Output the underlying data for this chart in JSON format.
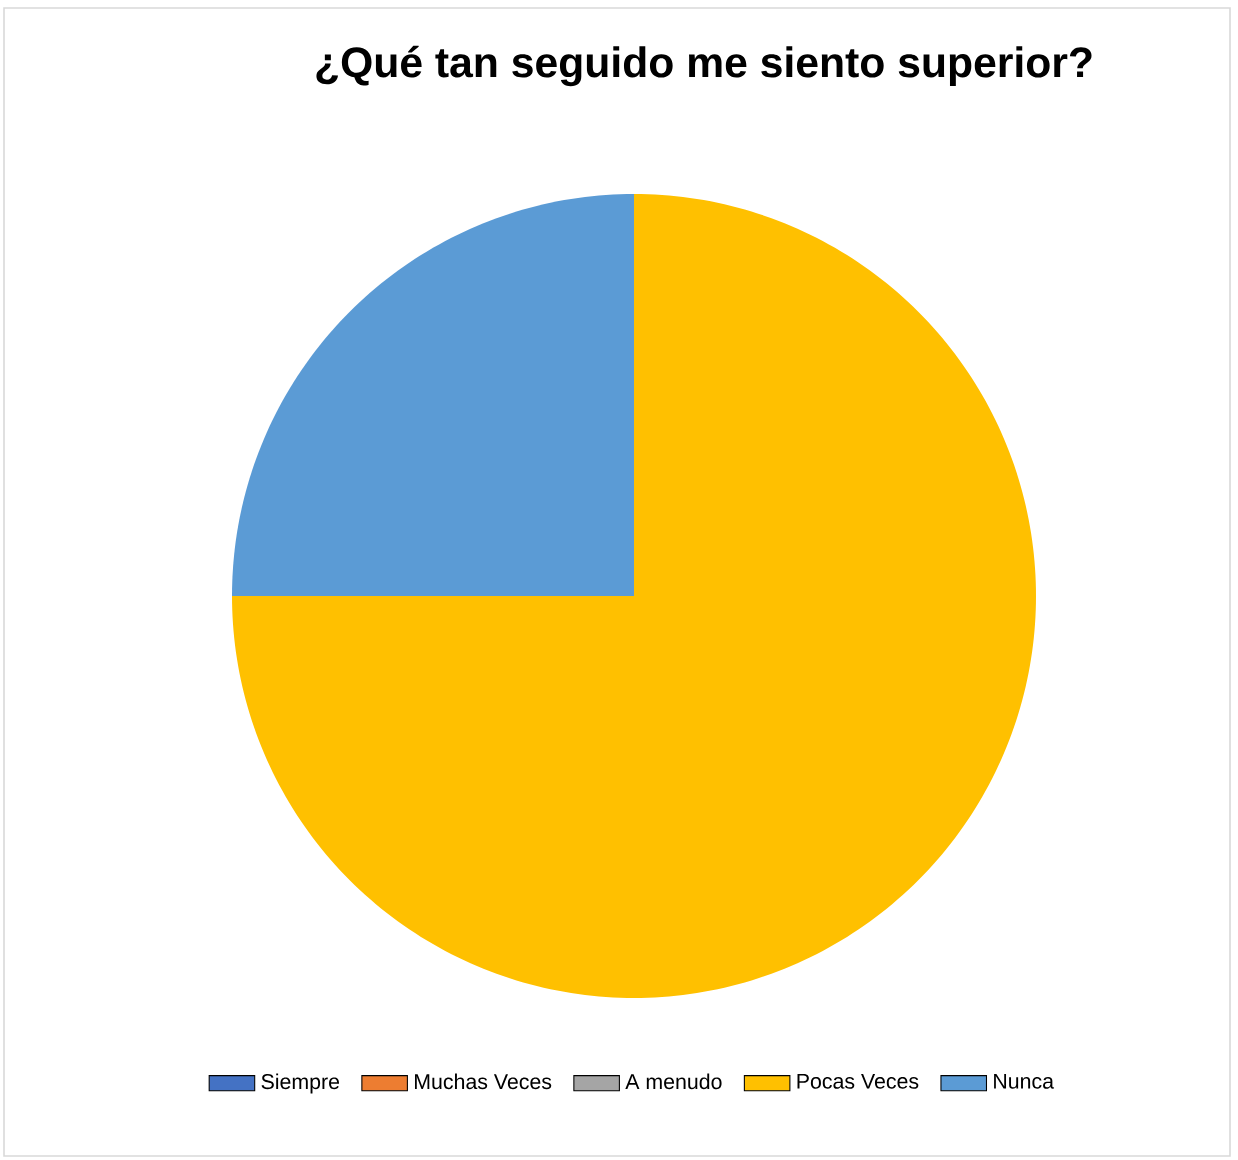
{
  "chart_data": {
    "type": "pie",
    "title": "¿Qué tan seguido me siento superior?",
    "categories": [
      "Siempre",
      "Muchas Veces",
      "A menudo",
      "Pocas Veces",
      "Nunca"
    ],
    "values": [
      0,
      0,
      0,
      75,
      25
    ],
    "colors": [
      "#4472c4",
      "#ed7d31",
      "#a5a5a5",
      "#ffc000",
      "#5b9bd5"
    ],
    "legend": "bottom"
  }
}
